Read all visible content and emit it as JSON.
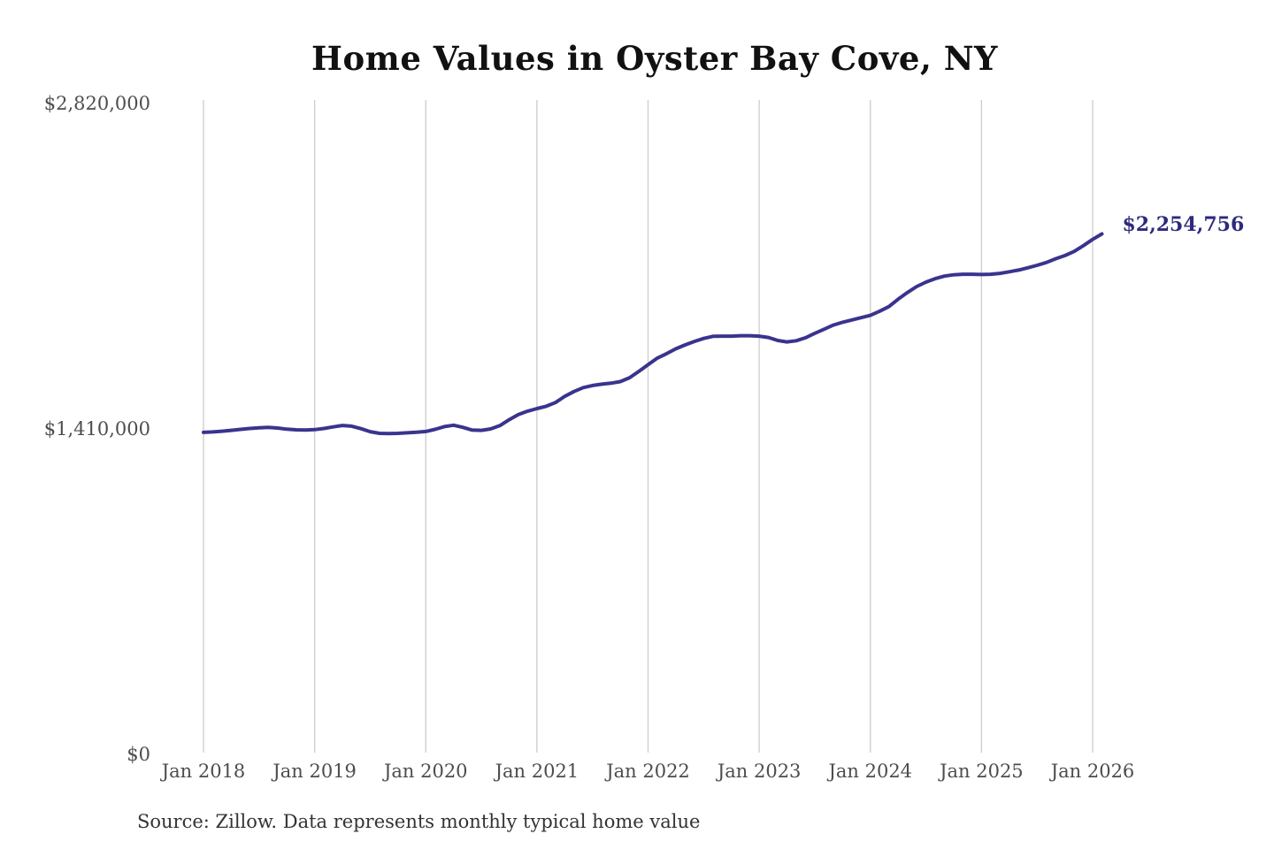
{
  "chart": {
    "title": "Home Values in Oyster Bay Cove, NY",
    "latest_value_label": "$2,254,756",
    "source": "Source: Zillow. Data represents monthly typical home value",
    "line_color": "#39348e",
    "annotation_color": "#2e2a7d",
    "gridline_color": "#cccccc",
    "axis_label_color": "#4d4d4d"
  },
  "chart_data": {
    "type": "line",
    "title": "Home Values in Oyster Bay Cove, NY",
    "series_name": "Monthly typical home value",
    "x_start": "Jan 2018",
    "x_freq": "monthly",
    "values": [
      1395000,
      1397000,
      1400000,
      1404000,
      1408000,
      1412000,
      1415000,
      1417000,
      1414000,
      1409000,
      1406000,
      1405000,
      1407000,
      1412000,
      1419000,
      1425000,
      1422000,
      1411000,
      1398000,
      1391000,
      1390000,
      1391000,
      1393000,
      1396000,
      1399000,
      1408000,
      1420000,
      1426000,
      1417000,
      1405000,
      1404000,
      1410000,
      1424000,
      1450000,
      1472000,
      1487000,
      1498000,
      1508000,
      1524000,
      1551000,
      1572000,
      1589000,
      1598000,
      1604000,
      1608000,
      1615000,
      1632000,
      1659000,
      1688000,
      1717000,
      1736000,
      1757000,
      1774000,
      1789000,
      1802000,
      1811000,
      1812000,
      1812000,
      1814000,
      1814000,
      1812000,
      1806000,
      1793000,
      1787000,
      1792000,
      1805000,
      1824000,
      1842000,
      1860000,
      1872000,
      1882000,
      1892000,
      1902000,
      1920000,
      1940000,
      1972000,
      2001000,
      2027000,
      2046000,
      2061000,
      2072000,
      2078000,
      2080000,
      2080000,
      2079000,
      2080000,
      2084000,
      2091000,
      2098000,
      2108000,
      2119000,
      2131000,
      2147000,
      2161000,
      2179000,
      2204000,
      2231000,
      2254756
    ],
    "latest_value": 2254756,
    "annotation": "$2,254,756",
    "x_ticks": [
      {
        "label": "Jan 2018",
        "month_index": 0
      },
      {
        "label": "Jan 2019",
        "month_index": 12
      },
      {
        "label": "Jan 2020",
        "month_index": 24
      },
      {
        "label": "Jan 2021",
        "month_index": 36
      },
      {
        "label": "Jan 2022",
        "month_index": 48
      },
      {
        "label": "Jan 2023",
        "month_index": 60
      },
      {
        "label": "Jan 2024",
        "month_index": 72
      },
      {
        "label": "Jan 2025",
        "month_index": 84
      },
      {
        "label": "Jan 2026",
        "month_index": 96
      }
    ],
    "y_ticks": [
      {
        "label": "$0",
        "value": 0
      },
      {
        "label": "$1,410,000",
        "value": 1410000
      },
      {
        "label": "$2,820,000",
        "value": 2820000
      }
    ],
    "ylim": [
      0,
      2820000
    ],
    "grid": "vertical-only",
    "legend": "none",
    "source": "Source: Zillow. Data represents monthly typical home value"
  }
}
